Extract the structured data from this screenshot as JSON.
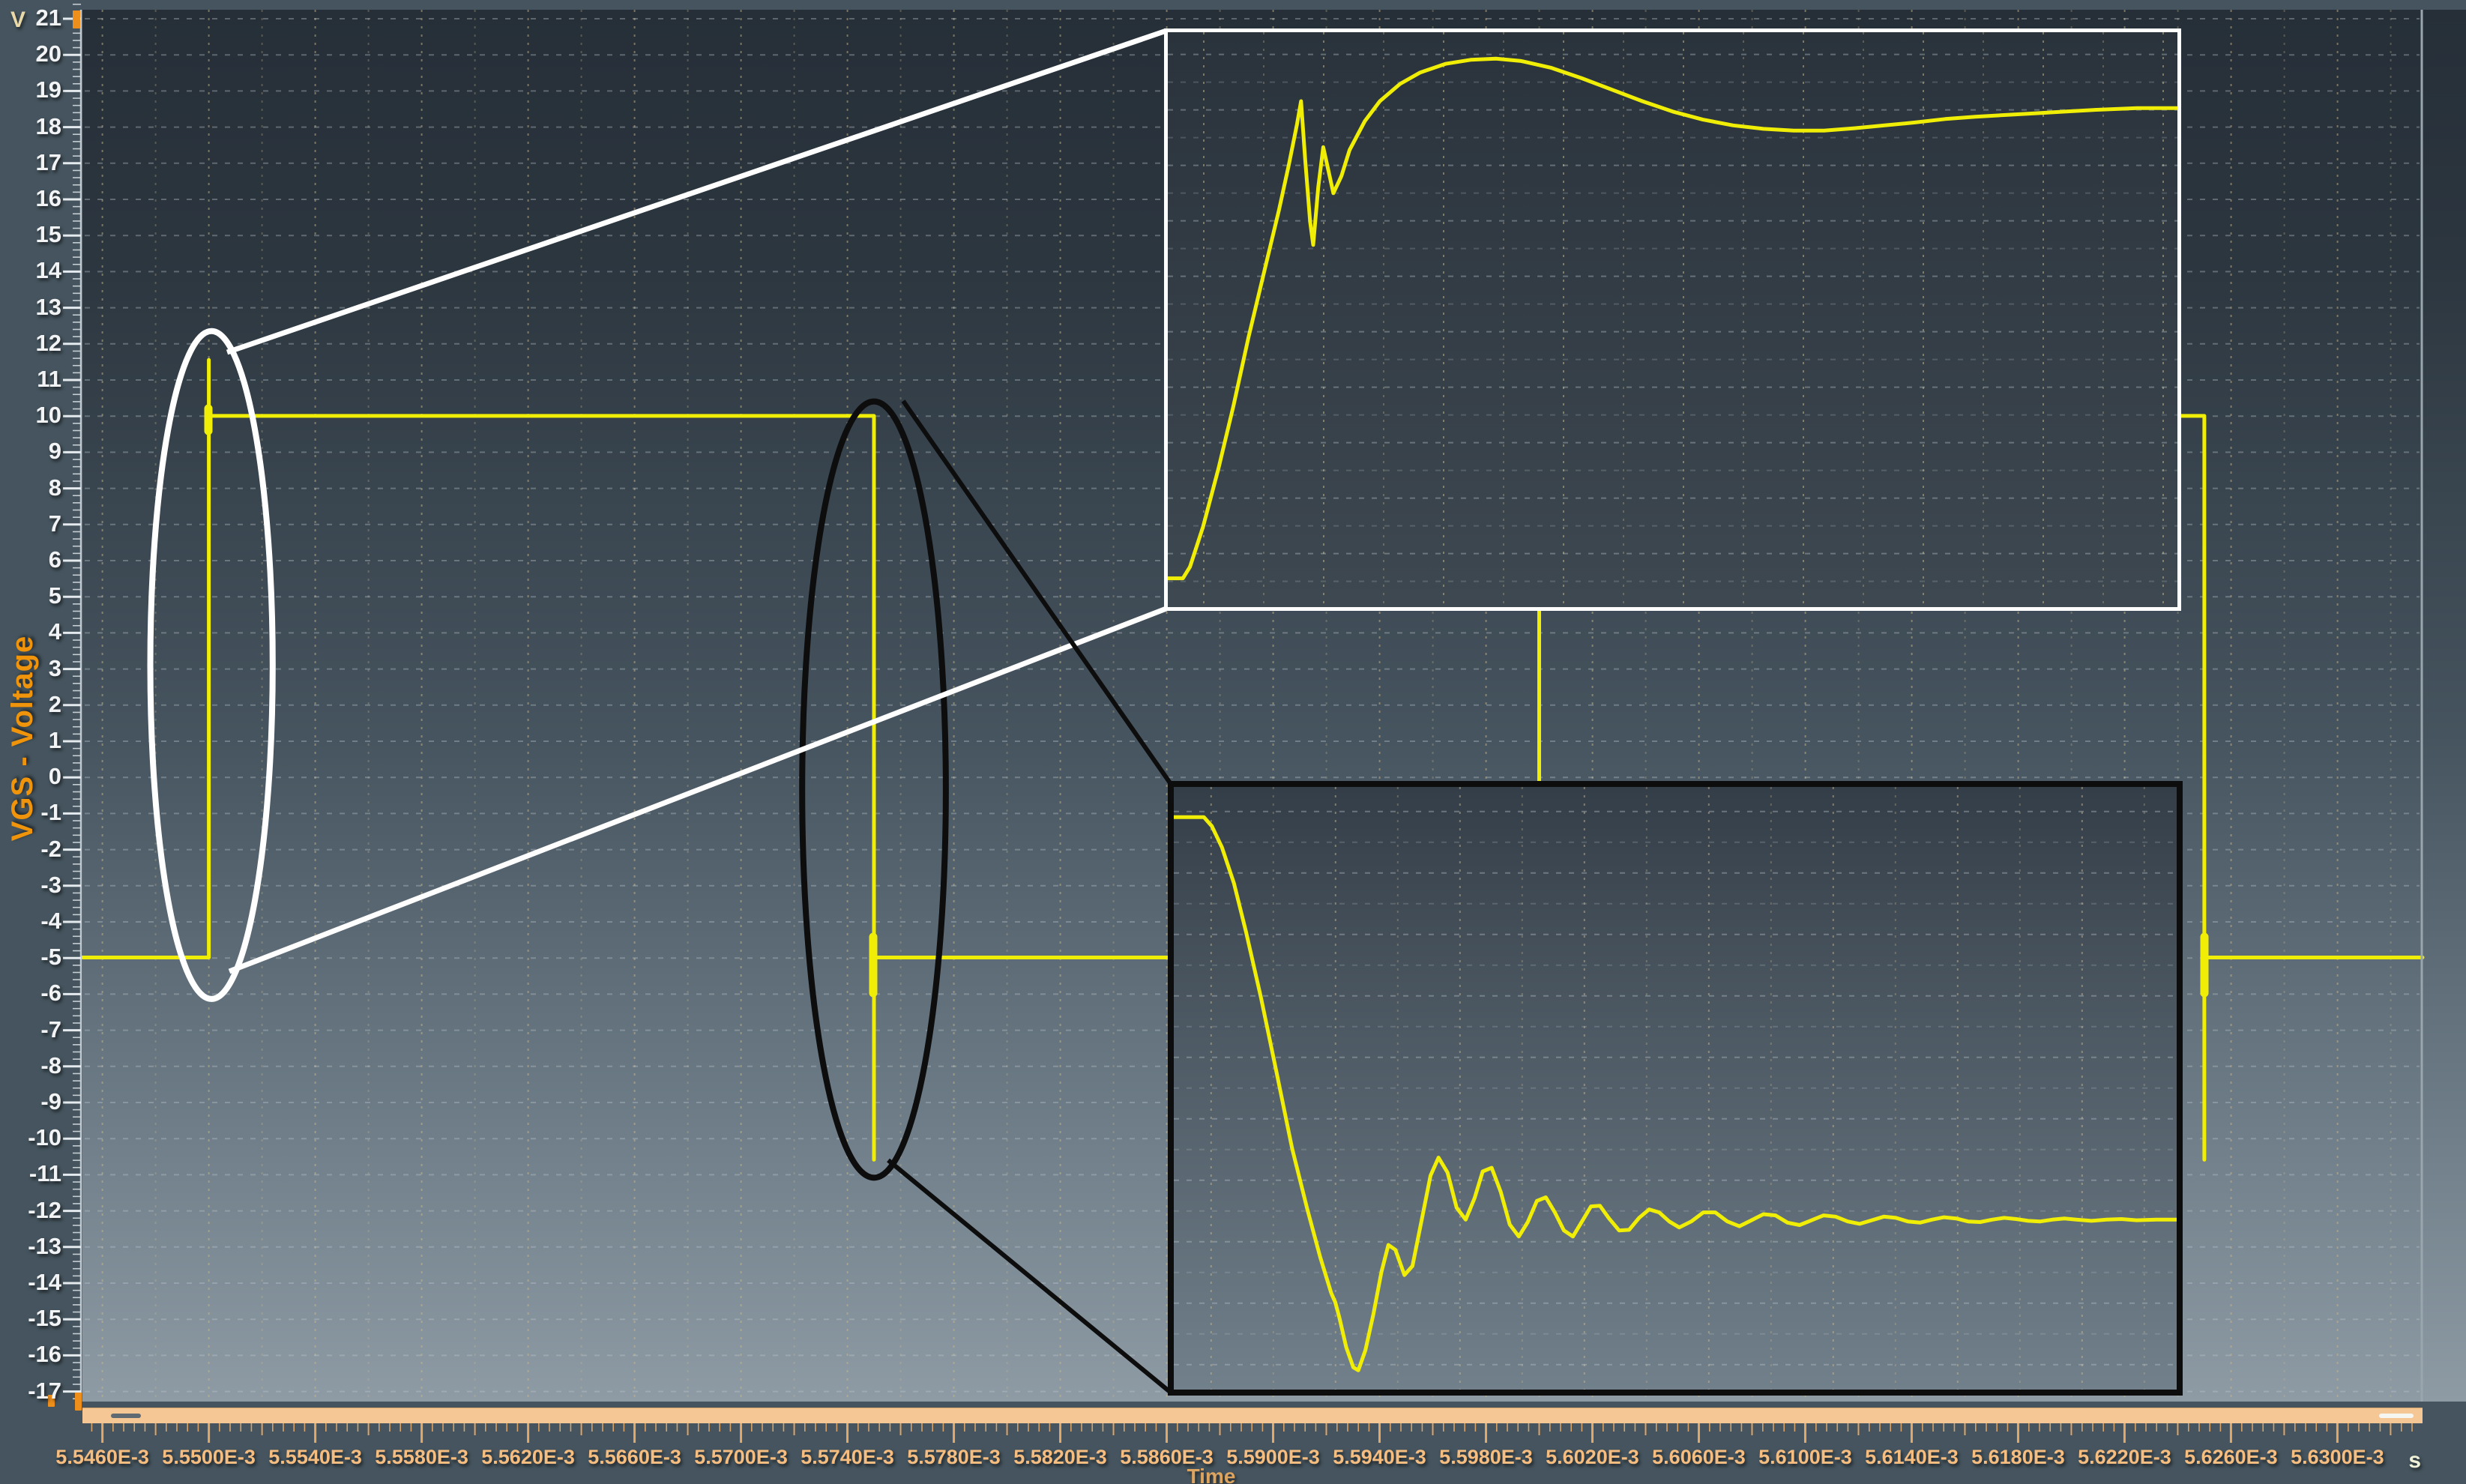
{
  "window": {
    "background": "#45545e"
  },
  "y_axis": {
    "unit_label": "V",
    "title": "VGS - Voltage",
    "tick_labels": [
      "21",
      "20",
      "19",
      "18",
      "17",
      "16",
      "15",
      "14",
      "13",
      "12",
      "11",
      "10",
      "9",
      "8",
      "7",
      "6",
      "5",
      "4",
      "3",
      "2",
      "1",
      "0",
      "-1",
      "-2",
      "-3",
      "-4",
      "-5",
      "-6",
      "-7",
      "-8",
      "-9",
      "-10",
      "-11",
      "-12",
      "-13",
      "-14",
      "-15",
      "-16",
      "-17"
    ]
  },
  "x_axis": {
    "unit_label": "s",
    "title": "Time",
    "tick_labels": [
      "5.5460E-3",
      "5.5500E-3",
      "5.5540E-3",
      "5.5580E-3",
      "5.5620E-3",
      "5.5660E-3",
      "5.5700E-3",
      "5.5740E-3",
      "5.5780E-3",
      "5.5820E-3",
      "5.5860E-3",
      "5.5900E-3",
      "5.5940E-3",
      "5.5980E-3",
      "5.6020E-3",
      "5.6060E-3",
      "5.6100E-3",
      "5.6140E-3",
      "5.6180E-3",
      "5.6220E-3",
      "5.6260E-3",
      "5.6300E-3"
    ]
  },
  "colors": {
    "trace": "#f0ee06",
    "y_tick_text": "#f2f3f4",
    "x_tick_text": "#f5bd80",
    "axis_title_orange": "#ef940b",
    "ruler_tick_orange": "#e2a868",
    "scrollbar": "#f4c795",
    "axis_handle_orange": "#ee8f1c",
    "annotation_white": "#ffffff",
    "annotation_black": "#0d0d0d",
    "plot_gradient_top": "#262f38",
    "plot_gradient_bottom": "#8e9ba5"
  },
  "chart_data": {
    "type": "line",
    "title": "",
    "xlabel": "Time",
    "x_unit": "s",
    "ylabel": "VGS - Voltage",
    "y_unit": "V",
    "x_range": [
      0.00554525,
      0.0056332
    ],
    "y_range": [
      -17.3,
      21.25
    ],
    "grid": "dotted",
    "levels": {
      "high_V": 10,
      "low_V": -5,
      "rise_overshoot_V": 11.55,
      "fall_undershoot_V": -10.6
    },
    "edges": {
      "rise_times_s": [
        0.00555,
        0.0056
      ],
      "fall_times_s": [
        0.005575,
        0.005625
      ]
    },
    "series": [
      {
        "name": "VGS",
        "color": "#f0ee06",
        "points": [
          [
            0.00554525,
            -5
          ],
          [
            0.00555,
            -5
          ],
          [
            0.00555,
            11.55
          ],
          [
            0.00555,
            10
          ],
          [
            0.005575,
            10
          ],
          [
            0.005575,
            -10.6
          ],
          [
            0.005575,
            -5
          ],
          [
            0.0056,
            -5
          ],
          [
            0.0056,
            10
          ],
          [
            0.005625,
            10
          ],
          [
            0.005625,
            -10.6
          ],
          [
            0.005625,
            -5
          ],
          [
            0.0056332,
            -5
          ]
        ]
      }
    ],
    "annotations": {
      "ellipses": [
        {
          "name": "rising-edge",
          "color": "#ffffff",
          "center_t": 0.0055501,
          "center_V": 3.1,
          "rx_t": 2.3e-06,
          "ry_V": 9.25
        },
        {
          "name": "falling-edge",
          "color": "#0d0d0d",
          "center_t": 0.005575,
          "center_V": -0.35,
          "rx_t": 2.7e-06,
          "ry_V": 10.75
        }
      ]
    },
    "insets": [
      {
        "name": "rising-edge-detail",
        "frame_color": "#ffffff",
        "description": "magnified turn-on transient: fast rise with glitch, overshoot peak, settling to 10 V",
        "points_pct": [
          [
            0,
            95
          ],
          [
            1.5,
            95
          ],
          [
            2.2,
            93
          ],
          [
            3.5,
            86
          ],
          [
            5,
            76
          ],
          [
            6.5,
            65
          ],
          [
            8,
            53
          ],
          [
            9.5,
            42
          ],
          [
            11,
            31
          ],
          [
            12,
            23
          ],
          [
            12.8,
            16
          ],
          [
            13.2,
            12
          ],
          [
            13.6,
            22
          ],
          [
            14.1,
            33
          ],
          [
            14.4,
            37
          ],
          [
            14.9,
            27
          ],
          [
            15.4,
            20
          ],
          [
            15.9,
            24
          ],
          [
            16.4,
            28
          ],
          [
            17.2,
            25
          ],
          [
            18,
            20.5
          ],
          [
            19.5,
            15.5
          ],
          [
            21,
            12
          ],
          [
            23,
            9
          ],
          [
            25,
            7
          ],
          [
            27.5,
            5.5
          ],
          [
            30,
            4.8
          ],
          [
            32.5,
            4.6
          ],
          [
            35,
            5
          ],
          [
            38,
            6.2
          ],
          [
            41,
            8
          ],
          [
            44,
            10
          ],
          [
            47,
            12
          ],
          [
            50,
            13.8
          ],
          [
            53,
            15.2
          ],
          [
            56,
            16.2
          ],
          [
            59,
            16.8
          ],
          [
            62,
            17.1
          ],
          [
            65,
            17.1
          ],
          [
            68,
            16.7
          ],
          [
            71,
            16.2
          ],
          [
            74,
            15.7
          ],
          [
            77,
            15.1
          ],
          [
            80,
            14.7
          ],
          [
            83,
            14.4
          ],
          [
            86,
            14.1
          ],
          [
            89,
            13.8
          ],
          [
            92,
            13.5
          ],
          [
            96,
            13.2
          ],
          [
            100,
            13.2
          ]
        ]
      },
      {
        "name": "falling-edge-detail",
        "frame_color": "#0d0d0d",
        "description": "magnified turn-off transient: fast fall with undershoot and decaying ringing to -5 V",
        "points_pct": [
          [
            0,
            5
          ],
          [
            3,
            5
          ],
          [
            3.8,
            6.5
          ],
          [
            4.8,
            10
          ],
          [
            6,
            16
          ],
          [
            7.2,
            24
          ],
          [
            8.7,
            35
          ],
          [
            10.2,
            47
          ],
          [
            11.8,
            60
          ],
          [
            13.3,
            70
          ],
          [
            14.6,
            78
          ],
          [
            15.7,
            84
          ],
          [
            16.1,
            85.5
          ],
          [
            16.5,
            88
          ],
          [
            17.2,
            93
          ],
          [
            17.9,
            96.3
          ],
          [
            18.4,
            96.8
          ],
          [
            19.1,
            93.5
          ],
          [
            19.9,
            87.5
          ],
          [
            20.7,
            80.5
          ],
          [
            21.4,
            76
          ],
          [
            22.1,
            76.8
          ],
          [
            23,
            81
          ],
          [
            23.8,
            79.5
          ],
          [
            24.7,
            72
          ],
          [
            25.6,
            64.5
          ],
          [
            26.4,
            61.5
          ],
          [
            27.3,
            64
          ],
          [
            28.2,
            69.8
          ],
          [
            29.1,
            71.8
          ],
          [
            30,
            68.2
          ],
          [
            30.8,
            63.8
          ],
          [
            31.7,
            63.2
          ],
          [
            32.6,
            67.2
          ],
          [
            33.5,
            72.6
          ],
          [
            34.4,
            74.6
          ],
          [
            35.3,
            72.2
          ],
          [
            36.2,
            68.7
          ],
          [
            37.1,
            68.1
          ],
          [
            38,
            70.6
          ],
          [
            38.9,
            73.6
          ],
          [
            39.8,
            74.6
          ],
          [
            40.7,
            72.1
          ],
          [
            41.6,
            69.6
          ],
          [
            42.5,
            69.5
          ],
          [
            43.4,
            71.6
          ],
          [
            44.4,
            73.6
          ],
          [
            45.4,
            73.5
          ],
          [
            46.4,
            71.5
          ],
          [
            47.4,
            70.1
          ],
          [
            48.4,
            70.6
          ],
          [
            49.4,
            72.1
          ],
          [
            50.4,
            73.1
          ],
          [
            51.6,
            72.1
          ],
          [
            52.8,
            70.6
          ],
          [
            54,
            70.6
          ],
          [
            55.2,
            72.1
          ],
          [
            56.4,
            72.9
          ],
          [
            57.6,
            71.9
          ],
          [
            58.8,
            70.9
          ],
          [
            60,
            71.1
          ],
          [
            61.2,
            72.3
          ],
          [
            62.4,
            72.7
          ],
          [
            63.6,
            71.9
          ],
          [
            64.8,
            71.1
          ],
          [
            66,
            71.3
          ],
          [
            67.2,
            72.1
          ],
          [
            68.4,
            72.5
          ],
          [
            69.6,
            71.9
          ],
          [
            70.8,
            71.3
          ],
          [
            72,
            71.5
          ],
          [
            73.2,
            72.1
          ],
          [
            74.4,
            72.3
          ],
          [
            75.6,
            71.8
          ],
          [
            76.8,
            71.4
          ],
          [
            78,
            71.6
          ],
          [
            79.2,
            72.1
          ],
          [
            80.4,
            72.2
          ],
          [
            81.6,
            71.8
          ],
          [
            82.8,
            71.5
          ],
          [
            84,
            71.7
          ],
          [
            85.2,
            72
          ],
          [
            86.4,
            72.1
          ],
          [
            87.6,
            71.8
          ],
          [
            88.8,
            71.6
          ],
          [
            90,
            71.8
          ],
          [
            91.5,
            72
          ],
          [
            93,
            71.8
          ],
          [
            94.5,
            71.7
          ],
          [
            96,
            71.9
          ],
          [
            98,
            71.8
          ],
          [
            100,
            71.8
          ]
        ]
      }
    ]
  }
}
